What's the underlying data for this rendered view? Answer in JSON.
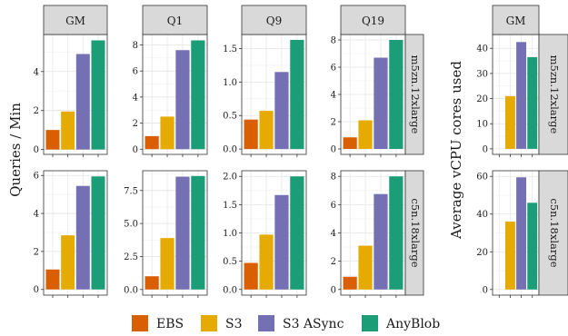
{
  "legend": [
    {
      "key": "ebs",
      "label": "EBS",
      "color": "#d95f02"
    },
    {
      "key": "s3",
      "label": "S3",
      "color": "#e6ab02"
    },
    {
      "key": "s3async",
      "label": "S3 ASync",
      "color": "#7570b3"
    },
    {
      "key": "anyblob",
      "label": "AnyBlob",
      "color": "#1b9e77"
    }
  ],
  "chart_data": [
    {
      "type": "bar",
      "panel": "GM",
      "instance": "m5zn.12xlarge",
      "ylabel": "Queries / Min",
      "categories": [
        "EBS",
        "S3",
        "S3 ASync",
        "AnyBlob"
      ],
      "values": [
        1.0,
        1.95,
        4.9,
        5.6
      ],
      "ylim": [
        -0.25,
        5.9
      ],
      "yticks": [
        0,
        2,
        4
      ],
      "ytick_labels": [
        "0",
        "2",
        "4"
      ]
    },
    {
      "type": "bar",
      "panel": "Q1",
      "instance": "m5zn.12xlarge",
      "ylabel": "Queries / Min",
      "categories": [
        "EBS",
        "S3",
        "S3 ASync",
        "AnyBlob"
      ],
      "values": [
        1.0,
        2.5,
        7.6,
        8.35
      ],
      "ylim": [
        -0.4,
        8.8
      ],
      "yticks": [
        0,
        2,
        4,
        6,
        8
      ],
      "ytick_labels": [
        "0",
        "2",
        "4",
        "6",
        "8"
      ]
    },
    {
      "type": "bar",
      "panel": "Q9",
      "instance": "m5zn.12xlarge",
      "ylabel": "Queries / Min",
      "categories": [
        "EBS",
        "S3",
        "S3 ASync",
        "AnyBlob"
      ],
      "values": [
        0.44,
        0.57,
        1.15,
        1.63
      ],
      "ylim": [
        -0.08,
        1.71
      ],
      "yticks": [
        0,
        0.5,
        1.0,
        1.5
      ],
      "ytick_labels": [
        "0.0",
        "0.5",
        "1.0",
        "1.5"
      ]
    },
    {
      "type": "bar",
      "panel": "Q19",
      "instance": "m5zn.12xlarge",
      "ylabel": "Queries / Min",
      "categories": [
        "EBS",
        "S3",
        "S3 ASync",
        "AnyBlob"
      ],
      "values": [
        0.85,
        2.1,
        6.7,
        8.0
      ],
      "ylim": [
        -0.4,
        8.4
      ],
      "yticks": [
        0,
        2,
        4,
        6,
        8
      ],
      "ytick_labels": [
        "0",
        "2",
        "4",
        "6",
        "8"
      ]
    },
    {
      "type": "bar",
      "panel": "GM",
      "instance": "c5n.18xlarge",
      "ylabel": "Queries / Min",
      "categories": [
        "EBS",
        "S3",
        "S3 ASync",
        "AnyBlob"
      ],
      "values": [
        1.05,
        2.85,
        5.45,
        5.95
      ],
      "ylim": [
        -0.3,
        6.25
      ],
      "yticks": [
        0,
        2,
        4,
        6
      ],
      "ytick_labels": [
        "0",
        "2",
        "4",
        "6"
      ]
    },
    {
      "type": "bar",
      "panel": "Q1",
      "instance": "c5n.18xlarge",
      "ylabel": "Queries / Min",
      "categories": [
        "EBS",
        "S3",
        "S3 ASync",
        "AnyBlob"
      ],
      "values": [
        1.0,
        3.9,
        8.55,
        8.6
      ],
      "ylim": [
        -0.43,
        9.0
      ],
      "yticks": [
        0,
        2.5,
        5.0,
        7.5
      ],
      "ytick_labels": [
        "0.0",
        "2.5",
        "5.0",
        "7.5"
      ]
    },
    {
      "type": "bar",
      "panel": "Q9",
      "instance": "c5n.18xlarge",
      "ylabel": "Queries / Min",
      "categories": [
        "EBS",
        "S3",
        "S3 ASync",
        "AnyBlob"
      ],
      "values": [
        0.47,
        0.97,
        1.67,
        2.0
      ],
      "ylim": [
        -0.1,
        2.1
      ],
      "yticks": [
        0,
        0.5,
        1.0,
        1.5,
        2.0
      ],
      "ytick_labels": [
        "0.0",
        "0.5",
        "1.0",
        "1.5",
        "2.0"
      ]
    },
    {
      "type": "bar",
      "panel": "Q19",
      "instance": "c5n.18xlarge",
      "ylabel": "Queries / Min",
      "categories": [
        "EBS",
        "S3",
        "S3 ASync",
        "AnyBlob"
      ],
      "values": [
        0.9,
        3.1,
        6.75,
        8.0
      ],
      "ylim": [
        -0.4,
        8.4
      ],
      "yticks": [
        0,
        2,
        4,
        6,
        8
      ],
      "ytick_labels": [
        "0",
        "2",
        "4",
        "6",
        "8"
      ]
    },
    {
      "type": "bar",
      "panel": "GM",
      "instance": "m5zn.12xlarge",
      "ylabel": "Average vCPU cores used",
      "categories": [
        "EBS",
        "S3",
        "S3 ASync",
        "AnyBlob"
      ],
      "values": [
        0,
        21,
        42.5,
        36.5
      ],
      "ylim": [
        -2.2,
        45.5
      ],
      "yticks": [
        0,
        10,
        20,
        30,
        40
      ],
      "ytick_labels": [
        "0",
        "10",
        "20",
        "30",
        "40"
      ]
    },
    {
      "type": "bar",
      "panel": "GM",
      "instance": "c5n.18xlarge",
      "ylabel": "Average vCPU cores used",
      "categories": [
        "EBS",
        "S3",
        "S3 ASync",
        "AnyBlob"
      ],
      "values": [
        0,
        36,
        59.5,
        46
      ],
      "ylim": [
        -3,
        63
      ],
      "yticks": [
        0,
        20,
        40,
        60
      ],
      "ytick_labels": [
        "0",
        "20",
        "40",
        "60"
      ]
    }
  ]
}
